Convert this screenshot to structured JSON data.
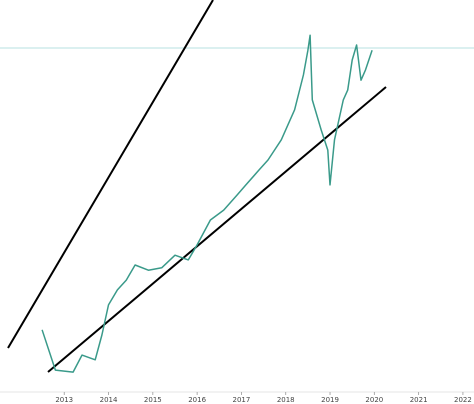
{
  "chart_data": {
    "type": "line",
    "x": [
      2012.5,
      2012.8,
      2013.2,
      2013.4,
      2013.7,
      2013.85,
      2014.0,
      2014.2,
      2014.4,
      2014.6,
      2014.9,
      2015.2,
      2015.5,
      2015.8,
      2016.0,
      2016.3,
      2016.6,
      2016.9,
      2017.1,
      2017.4,
      2017.6,
      2017.9,
      2018.2,
      2018.4,
      2018.5,
      2018.55,
      2018.6,
      2018.8,
      2018.95,
      2019.0,
      2019.1,
      2019.3,
      2019.4,
      2019.5,
      2019.6,
      2019.7,
      2019.8,
      2019.95
    ],
    "values": [
      16.5,
      6.3,
      5.8,
      10.1,
      8.9,
      15.2,
      22.8,
      26.6,
      29.1,
      32.9,
      31.6,
      32.2,
      35.4,
      34.2,
      38,
      44.3,
      46.8,
      50.6,
      53.2,
      57,
      59.5,
      64.6,
      72.2,
      81,
      87.3,
      91.1,
      74.7,
      67.1,
      62,
      53.2,
      64.6,
      74.7,
      77.2,
      84.8,
      88.6,
      79.7,
      82.3,
      87.3
    ],
    "color": "#3a9a8a",
    "xlim": [
      2011.55,
      2022.25
    ],
    "xticks": [
      2013,
      2014,
      2015,
      2016,
      2017,
      2018,
      2019,
      2020,
      2021,
      2022
    ],
    "ylim": [
      0,
      100
    ]
  }
}
